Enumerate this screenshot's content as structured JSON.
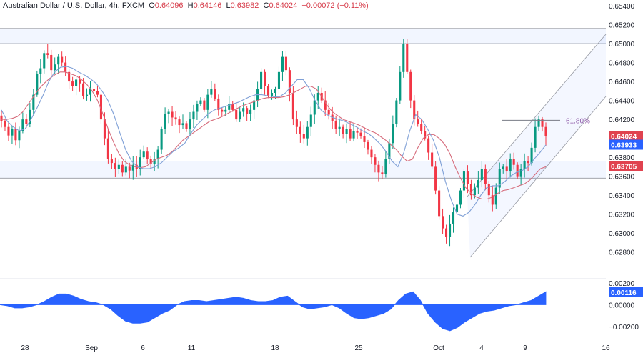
{
  "header": {
    "symbol": "Australian Dollar / U.S. Dollar, 4h, FXCM",
    "o_label": "O",
    "o_value": "0.64096",
    "h_label": "H",
    "h_value": "0.64146",
    "l_label": "L",
    "l_value": "0.63982",
    "c_label": "C",
    "c_value": "0.64024",
    "change": "−0.00072 (−0.11%)"
  },
  "chart_data": {
    "type": "candlestick",
    "price_axis": {
      "ylim": [
        0.627,
        0.654
      ],
      "ticks": [
        "0.65400",
        "0.65200",
        "0.65000",
        "0.64800",
        "0.64600",
        "0.64400",
        "0.64200",
        "0.64000",
        "0.63800",
        "0.63600",
        "0.63400",
        "0.63200",
        "0.63000",
        "0.62800"
      ]
    },
    "indicator_axis": {
      "ylim": [
        -0.0026,
        0.0022
      ],
      "ticks": [
        "0.00200",
        "0.00000",
        "−0.00200"
      ]
    },
    "x_ticks": [
      "28",
      "Sep",
      "6",
      "11",
      "18",
      "25",
      "Oct",
      "4",
      "9",
      "16"
    ],
    "resistance_zone": [
      0.65,
      0.6516
    ],
    "support_zone": [
      0.6358,
      0.6376
    ],
    "fib_label": "61.80%",
    "fib_level": 0.6419,
    "price_tags": [
      {
        "text": "0.64024",
        "color": "#e0424f"
      },
      {
        "text": "0.63933",
        "color": "#2962ff"
      },
      {
        "text": "0.63705",
        "color": "#e0424f"
      }
    ],
    "indicator_tag": {
      "text": "0.00116",
      "color": "#2962ff"
    },
    "close_path": [
      0.6418,
      0.6412,
      0.6403,
      0.641,
      0.6398,
      0.6408,
      0.642,
      0.6415,
      0.643,
      0.6446,
      0.6468,
      0.6474,
      0.649,
      0.6488,
      0.6472,
      0.6478,
      0.6486,
      0.648,
      0.647,
      0.646,
      0.6455,
      0.6462,
      0.6458,
      0.6445,
      0.6446,
      0.6452,
      0.645,
      0.6446,
      0.642,
      0.64,
      0.6378,
      0.6374,
      0.6368,
      0.6372,
      0.6364,
      0.637,
      0.6366,
      0.6372,
      0.6368,
      0.638,
      0.6386,
      0.6378,
      0.6373,
      0.6378,
      0.6388,
      0.641,
      0.6426,
      0.6428,
      0.6422,
      0.642,
      0.6414,
      0.6416,
      0.641,
      0.642,
      0.6428,
      0.6436,
      0.644,
      0.643,
      0.6446,
      0.6452,
      0.6442,
      0.643,
      0.6428,
      0.643,
      0.6436,
      0.643,
      0.642,
      0.6428,
      0.6432,
      0.6426,
      0.643,
      0.644,
      0.6452,
      0.647,
      0.6455,
      0.6445,
      0.6448,
      0.6452,
      0.647,
      0.6486,
      0.6472,
      0.6448,
      0.642,
      0.6412,
      0.6405,
      0.64,
      0.6412,
      0.6425,
      0.644,
      0.6448,
      0.644,
      0.643,
      0.6425,
      0.6418,
      0.641,
      0.6412,
      0.6405,
      0.641,
      0.64,
      0.6408,
      0.6406,
      0.6402,
      0.6396,
      0.6388,
      0.638,
      0.6372,
      0.6364,
      0.6362,
      0.6378,
      0.6395,
      0.6415,
      0.644,
      0.647,
      0.65,
      0.647,
      0.644,
      0.642,
      0.6415,
      0.6408,
      0.64,
      0.6385,
      0.637,
      0.6345,
      0.6318,
      0.6305,
      0.6296,
      0.631,
      0.6322,
      0.633,
      0.6345,
      0.6365,
      0.6352,
      0.634,
      0.6348,
      0.6356,
      0.6368,
      0.6352,
      0.634,
      0.633,
      0.6348,
      0.6368,
      0.637,
      0.6365,
      0.6378,
      0.6372,
      0.636,
      0.6368,
      0.6376,
      0.6374,
      0.639,
      0.6412,
      0.642,
      0.6412,
      0.6402
    ],
    "ma_slow": [
      0.642,
      0.642,
      0.6421,
      0.6423,
      0.6428,
      0.6436,
      0.6444,
      0.6452,
      0.6458,
      0.6463,
      0.6467,
      0.647,
      0.647,
      0.6468,
      0.6466,
      0.6462,
      0.6457,
      0.645,
      0.644,
      0.6426,
      0.641,
      0.6396,
      0.6384,
      0.6376,
      0.6372,
      0.637,
      0.6369,
      0.637,
      0.6374,
      0.6378,
      0.638,
      0.6382,
      0.6386,
      0.6392,
      0.6398,
      0.6402,
      0.6406,
      0.641,
      0.6414,
      0.6418,
      0.642,
      0.6422,
      0.6425,
      0.6428,
      0.6431,
      0.6434,
      0.6436,
      0.6438,
      0.644,
      0.6442,
      0.6443,
      0.6443,
      0.6443,
      0.6444,
      0.6446,
      0.6449,
      0.6452,
      0.6455,
      0.6455,
      0.6452,
      0.6444,
      0.6435,
      0.6428,
      0.6424,
      0.642,
      0.6418,
      0.6416,
      0.6414,
      0.6411,
      0.6408,
      0.6406,
      0.6402,
      0.6398,
      0.6393,
      0.6388,
      0.6381,
      0.6376,
      0.6378,
      0.639,
      0.64,
      0.6404,
      0.6404,
      0.64,
      0.6394,
      0.6384,
      0.637,
      0.6358,
      0.6348,
      0.6342,
      0.6338,
      0.6336,
      0.6336,
      0.6338,
      0.6342,
      0.6345,
      0.6346,
      0.6348,
      0.635,
      0.6352,
      0.6356,
      0.6362,
      0.6368,
      0.637
    ],
    "ma_fast": [
      0.643,
      0.6418,
      0.6412,
      0.6408,
      0.641,
      0.642,
      0.6432,
      0.6445,
      0.646,
      0.647,
      0.6475,
      0.6476,
      0.6474,
      0.647,
      0.6467,
      0.6463,
      0.6458,
      0.645,
      0.644,
      0.6425,
      0.6406,
      0.6388,
      0.6376,
      0.637,
      0.6368,
      0.6368,
      0.637,
      0.6374,
      0.638,
      0.6386,
      0.639,
      0.6395,
      0.6405,
      0.6414,
      0.642,
      0.6426,
      0.643,
      0.6432,
      0.6434,
      0.6436,
      0.6438,
      0.6441,
      0.6444,
      0.6446,
      0.6446,
      0.6445,
      0.6444,
      0.6444,
      0.6448,
      0.6455,
      0.6462,
      0.6462,
      0.6453,
      0.644,
      0.643,
      0.6425,
      0.6422,
      0.642,
      0.6418,
      0.6415,
      0.6412,
      0.6408,
      0.6405,
      0.64,
      0.6394,
      0.6386,
      0.6376,
      0.637,
      0.6385,
      0.6408,
      0.6425,
      0.642,
      0.641,
      0.6398,
      0.638,
      0.6355,
      0.6335,
      0.632,
      0.6318,
      0.6322,
      0.633,
      0.634,
      0.6348,
      0.635,
      0.635,
      0.6354,
      0.636,
      0.6364,
      0.6366,
      0.637,
      0.6378,
      0.6385,
      0.6393
    ],
    "oscillator": [
      0.0,
      -0.0001,
      -0.0003,
      -0.0003,
      -0.0002,
      0.0,
      0.0003,
      0.0007,
      0.001,
      0.001,
      0.0008,
      0.0005,
      0.0003,
      0.0002,
      0.0,
      -0.0004,
      -0.001,
      -0.0015,
      -0.0017,
      -0.0017,
      -0.0016,
      -0.0012,
      -0.0008,
      -0.0005,
      0.0,
      0.0003,
      0.0004,
      0.0004,
      0.0003,
      0.0004,
      0.0005,
      0.0006,
      0.0007,
      0.0006,
      0.0004,
      0.0003,
      0.0003,
      0.0004,
      0.0007,
      0.0008,
      0.0003,
      -0.0002,
      -0.0004,
      -0.0003,
      -0.0002,
      0.0,
      -0.0003,
      -0.0008,
      -0.0012,
      -0.0013,
      -0.0012,
      -0.001,
      -0.0008,
      -0.0004,
      0.0004,
      0.001,
      0.0012,
      0.0004,
      -0.0008,
      -0.0016,
      -0.0022,
      -0.0024,
      -0.0021,
      -0.0016,
      -0.0012,
      -0.0008,
      -0.0006,
      -0.0005,
      -0.0003,
      -0.0001,
      0.0,
      0.0002,
      0.0004,
      0.0008,
      0.0012
    ]
  }
}
